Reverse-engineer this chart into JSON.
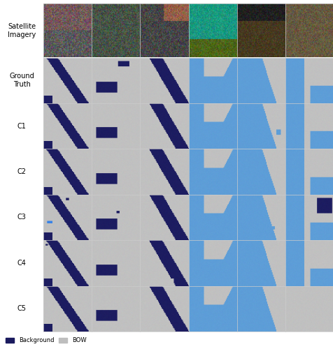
{
  "row_labels": [
    "Satellite\nImagery",
    "Ground\nTruth",
    "C1",
    "C2",
    "C3",
    "C4",
    "C5"
  ],
  "n_rows": 7,
  "n_cols": 6,
  "background_color": "#ffffff",
  "gray_bg": "#bebebe",
  "dark_blue": "#1a1a5e",
  "light_blue": "#5b9bd5",
  "label_fontsize": 7,
  "legend_background": "#1a1a5e",
  "legend_bow": "#bebebe",
  "title_fontsize": 7
}
